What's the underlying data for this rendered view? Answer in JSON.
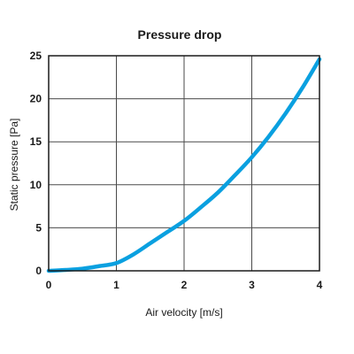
{
  "chart_data": {
    "type": "line",
    "title": "Pressure drop",
    "xlabel": "Air velocity [m/s]",
    "ylabel": "Static pressure  [Pa]",
    "xlim": [
      0,
      4
    ],
    "ylim": [
      0,
      25
    ],
    "x_ticks": [
      "0",
      "1",
      "2",
      "3",
      "4"
    ],
    "y_ticks": [
      "0",
      "5",
      "10",
      "15",
      "20",
      "25"
    ],
    "grid": true,
    "series": [
      {
        "color": "#0aa0e0",
        "x": [
          0,
          0.25,
          0.5,
          0.75,
          1.0,
          1.25,
          1.5,
          1.75,
          2.0,
          2.25,
          2.5,
          2.75,
          3.0,
          3.25,
          3.5,
          3.75,
          4.0
        ],
        "y": [
          0,
          0.1,
          0.25,
          0.55,
          0.9,
          1.9,
          3.2,
          4.5,
          5.8,
          7.4,
          9.1,
          11.1,
          13.2,
          15.6,
          18.3,
          21.3,
          24.6
        ]
      }
    ]
  }
}
